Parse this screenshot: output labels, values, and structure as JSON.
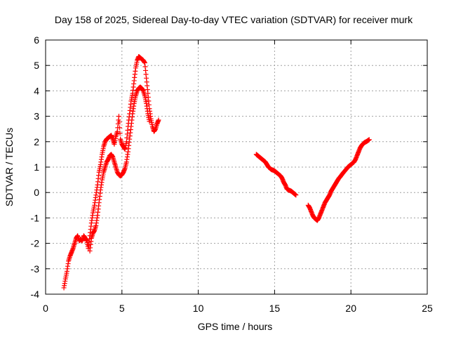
{
  "chart_data": {
    "type": "scatter",
    "title": "Day 158 of 2025, Sidereal Day-to-day VTEC variation (SDTVAR) for receiver murk",
    "xlabel": "GPS time / hours",
    "ylabel": "SDTVAR / TECUs",
    "xlim": [
      0,
      25
    ],
    "ylim": [
      -4,
      6
    ],
    "xticks": [
      0,
      5,
      10,
      15,
      20,
      25
    ],
    "yticks": [
      -4,
      -3,
      -2,
      -1,
      0,
      1,
      2,
      3,
      4,
      5,
      6
    ],
    "xtick_labels": [
      "0",
      "5",
      "10",
      "15",
      "20",
      "25"
    ],
    "ytick_labels": [
      "-4",
      "-3",
      "-2",
      "-1",
      "0",
      "1",
      "2",
      "3",
      "4",
      "5",
      "6"
    ],
    "grid": true,
    "marker": "+",
    "color": "#ff0000",
    "series": [
      {
        "name": "SDTVAR",
        "segments": [
          {
            "x": [
              1.2,
              1.3,
              1.4,
              1.5,
              1.6,
              1.7,
              1.8,
              1.9,
              2.0,
              2.1,
              2.2,
              2.3,
              2.4,
              2.5,
              2.6,
              2.7,
              2.8,
              2.9,
              3.0,
              3.1,
              3.2,
              3.3,
              3.4,
              3.5,
              3.6,
              3.7,
              3.8,
              3.9,
              4.0,
              4.1,
              4.2,
              4.3,
              4.4,
              4.5,
              4.6,
              4.7,
              4.8,
              4.9,
              5.0,
              5.1,
              5.2,
              5.3,
              5.4,
              5.5,
              5.6,
              5.7,
              5.8,
              5.9,
              6.0,
              6.1,
              6.2,
              6.3,
              6.4,
              6.5,
              6.6,
              6.7,
              6.8,
              6.9,
              7.0,
              7.1,
              7.2,
              7.3,
              7.4
            ],
            "y": [
              -3.75,
              -3.4,
              -3.1,
              -2.7,
              -2.5,
              -2.35,
              -2.2,
              -2.0,
              -1.8,
              -1.7,
              -1.9,
              -1.85,
              -1.9,
              -1.7,
              -1.8,
              -1.9,
              -2.2,
              -1.7,
              -1.2,
              -0.8,
              -0.5,
              -0.1,
              0.3,
              0.8,
              1.1,
              1.5,
              1.8,
              2.0,
              2.1,
              2.15,
              2.2,
              2.25,
              2.1,
              1.9,
              2.2,
              2.4,
              3.0,
              2.1,
              1.9,
              1.8,
              1.7,
              2.0,
              2.6,
              3.1,
              3.6,
              3.9,
              4.4,
              4.9,
              5.2,
              5.35,
              5.3,
              5.25,
              5.2,
              5.1,
              4.5,
              3.9,
              3.3,
              2.9,
              2.6,
              2.4,
              2.5,
              2.7,
              2.85
            ]
          },
          {
            "x": [
              2.9,
              3.0,
              3.1,
              3.2,
              3.3,
              3.4,
              3.5,
              3.6,
              3.7,
              3.8,
              3.9,
              4.0,
              4.1,
              4.2,
              4.3,
              4.4,
              4.5,
              4.6,
              4.7,
              4.8,
              4.9,
              5.0,
              5.1,
              5.2,
              5.3,
              5.4,
              5.5,
              5.6,
              5.7,
              5.8,
              5.9,
              6.0,
              6.1,
              6.2,
              6.3,
              6.4,
              6.5,
              6.6,
              6.7,
              6.8
            ],
            "y": [
              -2.3,
              -1.8,
              -1.6,
              -1.5,
              -1.3,
              -0.9,
              -0.4,
              0.1,
              0.5,
              0.8,
              1.0,
              1.2,
              1.3,
              1.45,
              1.5,
              1.4,
              1.2,
              1.0,
              0.8,
              0.7,
              0.65,
              0.7,
              0.8,
              0.95,
              1.2,
              1.6,
              2.1,
              2.6,
              3.1,
              3.5,
              3.8,
              4.0,
              4.1,
              4.15,
              4.1,
              4.0,
              3.8,
              3.5,
              3.1,
              2.8
            ]
          },
          {
            "x": [
              13.8,
              13.9,
              14.0,
              14.1,
              14.2,
              14.3,
              14.4,
              14.5,
              14.6,
              14.7,
              14.8,
              14.9,
              15.0,
              15.1,
              15.2,
              15.3,
              15.4,
              15.5,
              15.6,
              15.7,
              15.8,
              15.9,
              16.0,
              16.1,
              16.2,
              16.3,
              16.4
            ],
            "y": [
              1.5,
              1.45,
              1.4,
              1.35,
              1.3,
              1.25,
              1.2,
              1.1,
              1.0,
              0.95,
              0.9,
              0.88,
              0.85,
              0.8,
              0.75,
              0.7,
              0.65,
              0.55,
              0.4,
              0.3,
              0.15,
              0.1,
              0.08,
              0.05,
              0.0,
              -0.05,
              -0.1
            ]
          },
          {
            "x": [
              17.2,
              17.3,
              17.4,
              17.5,
              17.6,
              17.7,
              17.8,
              17.9,
              18.0,
              18.1,
              18.2,
              18.3,
              18.4,
              18.5,
              18.6,
              18.7,
              18.8,
              18.9,
              19.0,
              19.1,
              19.2,
              19.3,
              19.4,
              19.5,
              19.6,
              19.7,
              19.8,
              19.9,
              20.0,
              20.1,
              20.2,
              20.3,
              20.4,
              20.5,
              20.6,
              20.7,
              20.8,
              20.9,
              21.0,
              21.1,
              21.2
            ],
            "y": [
              -0.5,
              -0.6,
              -0.75,
              -0.9,
              -1.0,
              -1.05,
              -1.1,
              -1.0,
              -0.85,
              -0.7,
              -0.55,
              -0.4,
              -0.3,
              -0.2,
              -0.1,
              0.05,
              0.15,
              0.25,
              0.35,
              0.45,
              0.55,
              0.62,
              0.7,
              0.78,
              0.85,
              0.92,
              1.0,
              1.05,
              1.1,
              1.15,
              1.2,
              1.3,
              1.45,
              1.6,
              1.75,
              1.85,
              1.92,
              1.97,
              2.0,
              2.04,
              2.08
            ]
          }
        ]
      }
    ]
  }
}
